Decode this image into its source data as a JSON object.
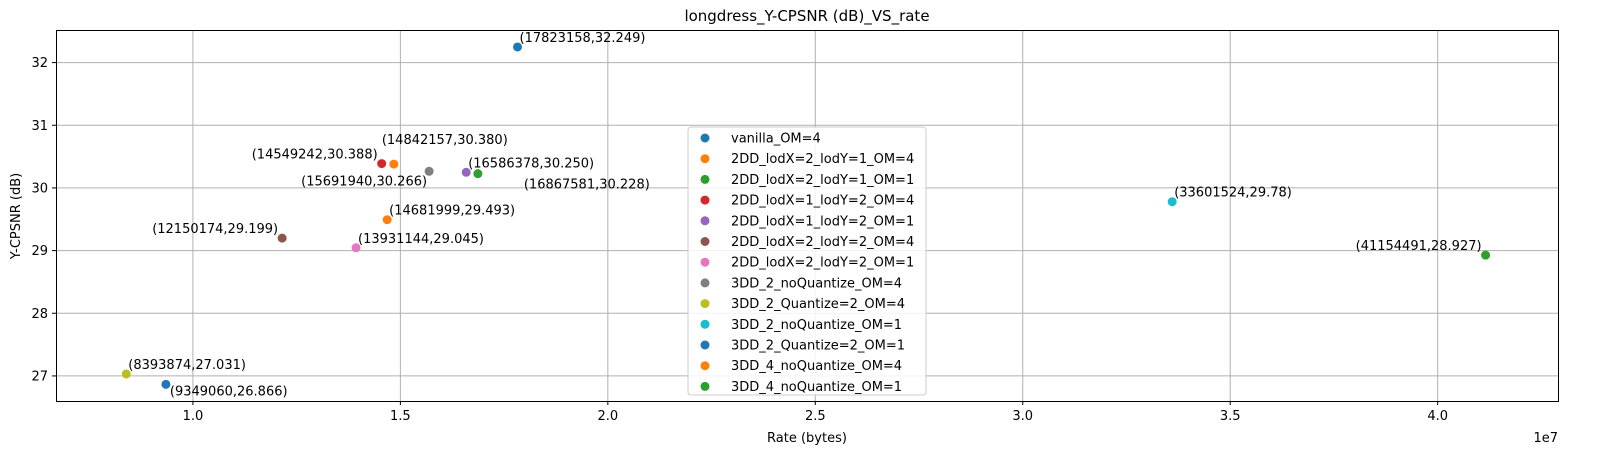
{
  "chart_data": {
    "type": "scatter",
    "title": "longdress_Y-CPSNR (dB)_VS_rate",
    "xlabel": "Rate (bytes)",
    "ylabel": "Y-CPSNR (dB)",
    "x_offset_label": "1e7",
    "x_scale": 10000000,
    "xlim": [
      6700000,
      42900000
    ],
    "ylim": [
      26.6,
      32.52
    ],
    "xticks": [
      1.0,
      1.5,
      2.0,
      2.5,
      3.0,
      3.5,
      4.0
    ],
    "xtick_labels": [
      "1.0",
      "1.5",
      "2.0",
      "2.5",
      "3.0",
      "3.5",
      "4.0"
    ],
    "yticks": [
      27,
      28,
      29,
      30,
      31,
      32
    ],
    "ytick_labels": [
      "27",
      "28",
      "29",
      "30",
      "31",
      "32"
    ],
    "grid": true,
    "legend_position": "center",
    "series": [
      {
        "name": "vanilla_OM=4",
        "color": "#1f77b4",
        "x": 17823158,
        "y": 32.249,
        "label": "(17823158,32.249)",
        "label_anchor": "start"
      },
      {
        "name": "2DD_lodX=2_lodY=1_OM=4",
        "color": "#ff7f0e",
        "x": 14842157,
        "y": 30.38,
        "label": "(14842157,30.380)",
        "label_anchor": "start"
      },
      {
        "name": "2DD_lodX=2_lodY=1_OM=1",
        "color": "#2ca02c",
        "x": 16867581,
        "y": 30.228,
        "label": "(16867581,30.228)",
        "label_anchor": "start"
      },
      {
        "name": "2DD_lodX=1_lodY=2_OM=4",
        "color": "#d62728",
        "x": 14549242,
        "y": 30.388,
        "label": "(14549242,30.388)",
        "label_anchor": "end"
      },
      {
        "name": "2DD_lodX=1_lodY=2_OM=1",
        "color": "#9467bd",
        "x": 16586378,
        "y": 30.25,
        "label": "(16586378,30.250)",
        "label_anchor": "start"
      },
      {
        "name": "2DD_lodX=2_lodY=2_OM=4",
        "color": "#8c564b",
        "x": 12150174,
        "y": 29.199,
        "label": "(12150174,29.199)",
        "label_anchor": "end"
      },
      {
        "name": "2DD_lodX=2_lodY=2_OM=1",
        "color": "#e377c2",
        "x": 13931144,
        "y": 29.045,
        "label": "(13931144,29.045)",
        "label_anchor": "start"
      },
      {
        "name": "3DD_2_noQuantize_OM=4",
        "color": "#7f7f7f",
        "x": 15691940,
        "y": 30.266,
        "label": "(15691940,30.266)",
        "label_anchor": "end"
      },
      {
        "name": "3DD_2_Quantize=2_OM=4",
        "color": "#bcbd22",
        "x": 8393874,
        "y": 27.031,
        "label": "(8393874,27.031)",
        "label_anchor": "start"
      },
      {
        "name": "3DD_2_noQuantize_OM=1",
        "color": "#17becf",
        "x": 33601524,
        "y": 29.78,
        "label": "(33601524,29.78)",
        "label_anchor": "start"
      },
      {
        "name": "3DD_2_Quantize=2_OM=1",
        "color": "#1f77b4",
        "x": 9349060,
        "y": 26.866,
        "label": "(9349060,26.866)",
        "label_anchor": "start"
      },
      {
        "name": "3DD_4_noQuantize_OM=4",
        "color": "#ff7f0e",
        "x": 14681999,
        "y": 29.493,
        "label": "(14681999,29.493)",
        "label_anchor": "start"
      },
      {
        "name": "3DD_4_noQuantize_OM=1",
        "color": "#2ca02c",
        "x": 41154491,
        "y": 28.927,
        "label": "(41154491,28.927)",
        "label_anchor": "end"
      }
    ]
  }
}
